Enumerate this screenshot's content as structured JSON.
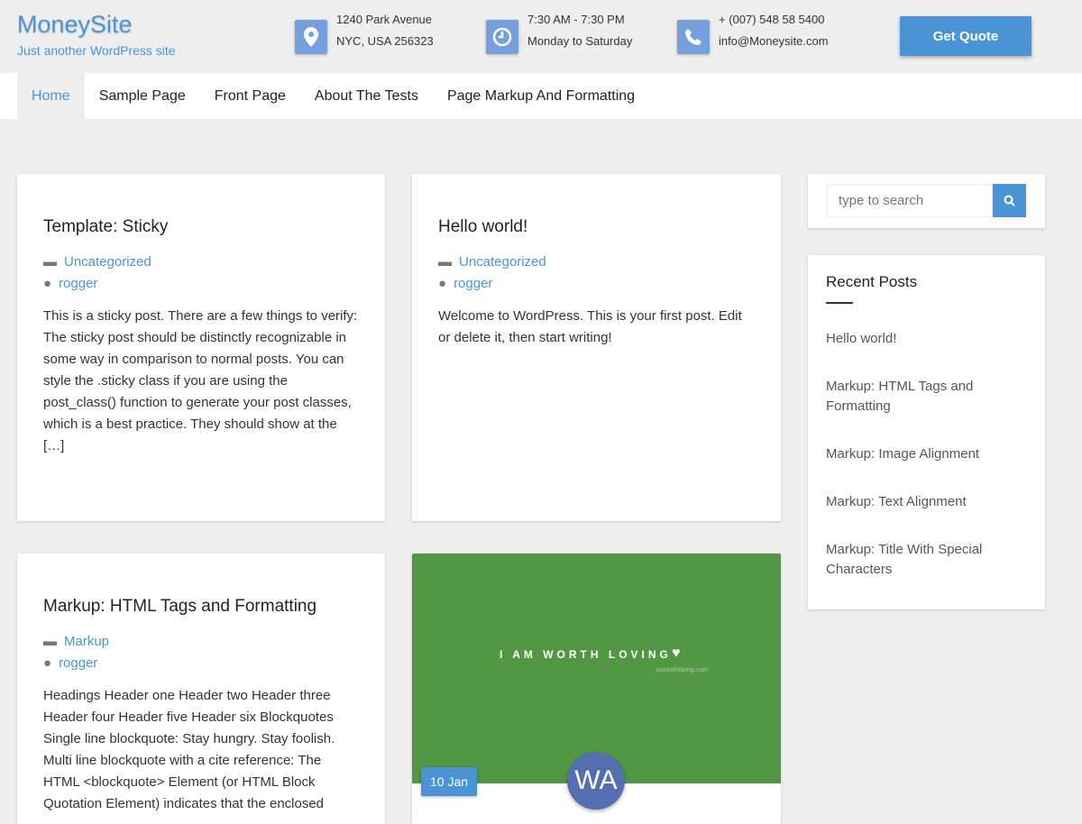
{
  "header": {
    "site_title": "MoneySite",
    "tagline": "Just another WordPress site",
    "address": {
      "line1": "1240 Park Avenue",
      "line2": "NYC, USA 256323",
      "icon": "location-pin-icon"
    },
    "hours": {
      "line1": "7:30 AM - 7:30 PM",
      "line2": "Monday to Saturday",
      "icon": "clock-icon"
    },
    "contact": {
      "line1": "+ (007) 548 58 5400",
      "line2": "info@Moneysite.com",
      "icon": "phone-icon"
    },
    "quote_label": "Get Quote"
  },
  "nav": {
    "items": [
      {
        "label": "Home"
      },
      {
        "label": "Sample Page"
      },
      {
        "label": "Front Page"
      },
      {
        "label": "About The Tests"
      },
      {
        "label": "Page Markup And Formatting"
      }
    ]
  },
  "posts": [
    {
      "title": "Template: Sticky",
      "category": "Uncategorized",
      "author": "rogger",
      "excerpt": "This is a sticky post. There are a few things to verify: The sticky post should be distinctly recognizable in some way in comparison to normal posts. You can style the .sticky class if you are using the post_class() function to generate your post classes, which is a best practice. They should show at the […]"
    },
    {
      "title": "Hello world!",
      "category": "Uncategorized",
      "author": "rogger",
      "excerpt": "Welcome to WordPress. This is your first post. Edit or delete it, then start writing!"
    },
    {
      "title": "Markup: HTML Tags and Formatting",
      "category": "Markup",
      "author": "rogger",
      "excerpt": "Headings Header one Header two Header three Header four Header five Header six Blockquotes Single line blockquote: Stay hungry. Stay foolish. Multi line blockquote with a cite reference: The HTML <blockquote> Element (or HTML Block Quotation Element) indicates that the enclosed"
    },
    {
      "image_text": "I AM WORTH LOVING",
      "image_url_text": "soworthloving.com",
      "date": "10 Jan",
      "avatar_text": "WA",
      "image_color": "#529743"
    }
  ],
  "sidebar": {
    "search_placeholder": "type to search",
    "recent_title": "Recent Posts",
    "recent": [
      "Hello world!",
      "Markup: HTML Tags and Formatting",
      "Markup: Image Alignment",
      "Markup: Text Alignment",
      "Markup: Title With Special Characters"
    ]
  },
  "colors": {
    "accent": "#4a94d6",
    "icon_box": "#76a0dc"
  }
}
